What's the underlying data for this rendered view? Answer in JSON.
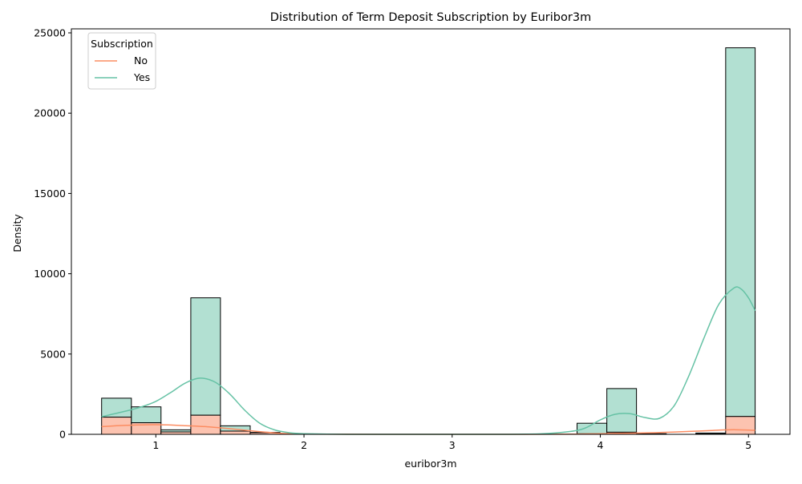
{
  "chart_data": {
    "type": "bar",
    "subtype": "stacked-histogram-with-kde",
    "title": "Distribution of Term Deposit Subscription by Euribor3m",
    "xlabel": "euribor3m",
    "ylabel": "Density",
    "xlim": [
      0.43,
      5.28
    ],
    "ylim": [
      0,
      25250
    ],
    "x_ticks": [
      1,
      2,
      3,
      4,
      5
    ],
    "y_ticks": [
      0,
      5000,
      10000,
      15000,
      20000,
      25000
    ],
    "legend": {
      "title": "Subscription",
      "position": "top-left",
      "entries": [
        "No",
        "Yes"
      ]
    },
    "colors": {
      "No": "#fc8d62",
      "Yes": "#66c2a5",
      "No_fill": "#fcc3b0",
      "Yes_fill": "#b2e0d2",
      "edge": "#000000"
    },
    "bins": [
      {
        "x0": 0.634,
        "x1": 0.835,
        "no": 1070,
        "yes": 1180
      },
      {
        "x0": 0.835,
        "x1": 1.035,
        "no": 720,
        "yes": 990
      },
      {
        "x0": 1.035,
        "x1": 1.236,
        "no": 150,
        "yes": 130
      },
      {
        "x0": 1.236,
        "x1": 1.436,
        "no": 1190,
        "yes": 7310
      },
      {
        "x0": 1.436,
        "x1": 1.637,
        "no": 200,
        "yes": 330
      },
      {
        "x0": 1.637,
        "x1": 1.838,
        "no": 100,
        "yes": 20
      },
      {
        "x0": 1.838,
        "x1": 2.038,
        "no": 0,
        "yes": 0
      },
      {
        "x0": 2.038,
        "x1": 2.239,
        "no": 0,
        "yes": 0
      },
      {
        "x0": 2.239,
        "x1": 2.439,
        "no": 0,
        "yes": 0
      },
      {
        "x0": 2.439,
        "x1": 2.64,
        "no": 0,
        "yes": 0
      },
      {
        "x0": 2.64,
        "x1": 2.84,
        "no": 0,
        "yes": 0
      },
      {
        "x0": 2.84,
        "x1": 3.041,
        "no": 0,
        "yes": 0
      },
      {
        "x0": 3.041,
        "x1": 3.241,
        "no": 0,
        "yes": 0
      },
      {
        "x0": 3.241,
        "x1": 3.442,
        "no": 0,
        "yes": 0
      },
      {
        "x0": 3.442,
        "x1": 3.643,
        "no": 0,
        "yes": 0
      },
      {
        "x0": 3.643,
        "x1": 3.843,
        "no": 0,
        "yes": 0
      },
      {
        "x0": 3.843,
        "x1": 4.044,
        "no": 30,
        "yes": 660
      },
      {
        "x0": 4.044,
        "x1": 4.244,
        "no": 130,
        "yes": 2720
      },
      {
        "x0": 4.244,
        "x1": 4.445,
        "no": 10,
        "yes": 30
      },
      {
        "x0": 4.445,
        "x1": 4.645,
        "no": 0,
        "yes": 0
      },
      {
        "x0": 4.645,
        "x1": 4.846,
        "no": 20,
        "yes": 60
      },
      {
        "x0": 4.846,
        "x1": 5.045,
        "no": 1110,
        "yes": 22960
      }
    ],
    "series": [
      {
        "name": "No",
        "kde_x": [
          0.634,
          0.8,
          1.0,
          1.2,
          1.35,
          1.5,
          1.65,
          1.8,
          1.9,
          2.0,
          2.5,
          3.0,
          3.5,
          3.8,
          4.0,
          4.2,
          4.4,
          4.6,
          4.8,
          4.9,
          5.045
        ],
        "kde_y": [
          480,
          560,
          600,
          540,
          470,
          350,
          210,
          90,
          40,
          15,
          0,
          0,
          0,
          10,
          40,
          70,
          110,
          180,
          260,
          290,
          250
        ]
      },
      {
        "name": "Yes",
        "kde_x": [
          0.634,
          0.8,
          0.9,
          1.0,
          1.1,
          1.2,
          1.3,
          1.4,
          1.5,
          1.6,
          1.7,
          1.8,
          1.9,
          2.0,
          2.3,
          2.7,
          3.0,
          3.3,
          3.6,
          3.8,
          3.9,
          4.0,
          4.1,
          4.2,
          4.3,
          4.4,
          4.5,
          4.6,
          4.7,
          4.8,
          4.9,
          4.95,
          5.0,
          5.045
        ],
        "kde_y": [
          1100,
          1450,
          1700,
          2050,
          2600,
          3200,
          3500,
          3250,
          2500,
          1500,
          700,
          280,
          100,
          40,
          0,
          0,
          0,
          0,
          30,
          180,
          400,
          900,
          1250,
          1280,
          1050,
          1000,
          1800,
          3700,
          6000,
          8100,
          9100,
          9050,
          8500,
          7700
        ]
      }
    ]
  }
}
